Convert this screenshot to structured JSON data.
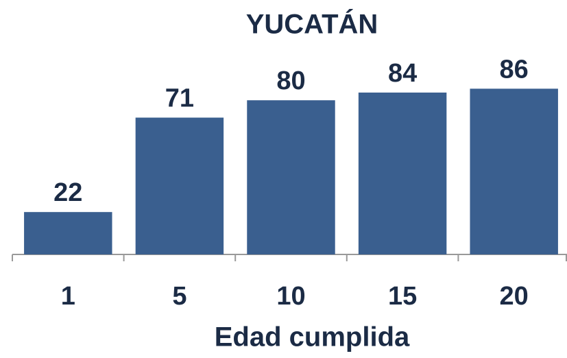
{
  "chart_data": {
    "type": "bar",
    "title": "YUCATÁN",
    "x_label": "Edad cumplida",
    "categories": [
      "1",
      "5",
      "10",
      "15",
      "20"
    ],
    "values": [
      22,
      71,
      80,
      84,
      86
    ],
    "color": "#3a5f8f",
    "ylim": [
      0,
      100
    ],
    "grid": false
  }
}
